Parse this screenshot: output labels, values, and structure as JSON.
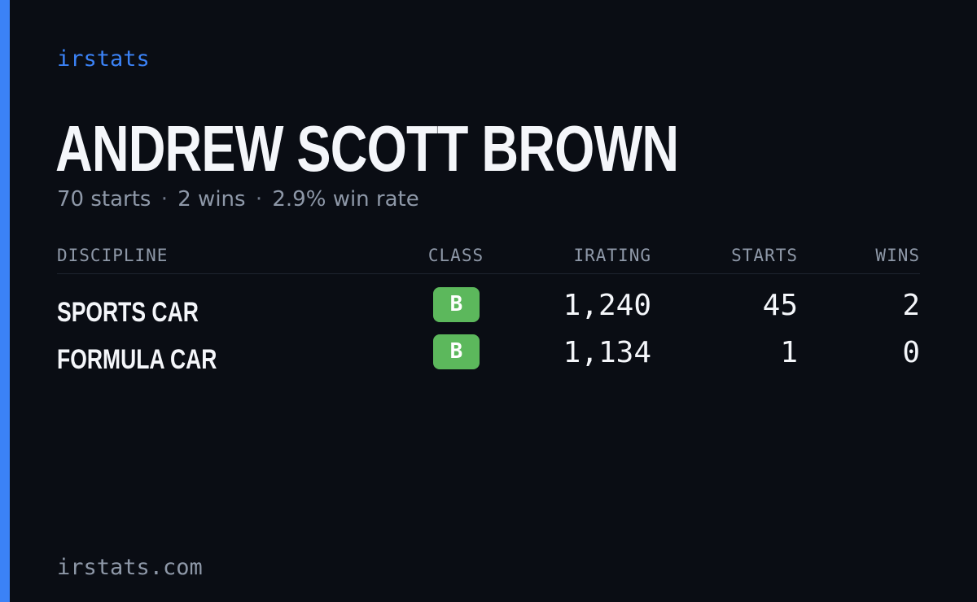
{
  "brand": {
    "name": "irstats",
    "domain": "irstats.com",
    "accent_color": "#3b82f6"
  },
  "player": {
    "name": "ANDREW SCOTT BROWN"
  },
  "summary": {
    "starts": "70 starts",
    "wins": "2 wins",
    "win_rate": "2.9% win rate",
    "separator": "·"
  },
  "table": {
    "headers": {
      "discipline": "DISCIPLINE",
      "class": "CLASS",
      "irating": "IRATING",
      "starts": "STARTS",
      "wins": "WINS"
    },
    "rows": [
      {
        "discipline": "SPORTS CAR",
        "class": "B",
        "class_color": "#5cb85c",
        "irating": "1,240",
        "starts": "45",
        "wins": "2"
      },
      {
        "discipline": "FORMULA CAR",
        "class": "B",
        "class_color": "#5cb85c",
        "irating": "1,134",
        "starts": "1",
        "wins": "0"
      }
    ]
  }
}
